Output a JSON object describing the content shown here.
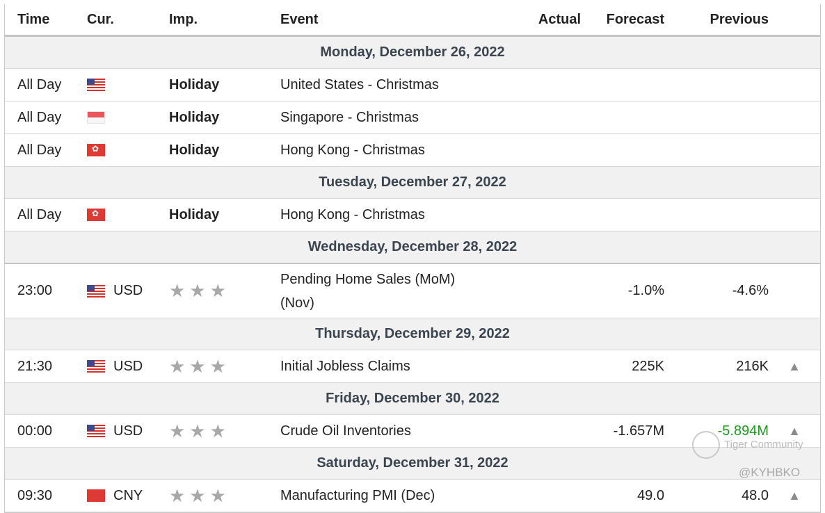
{
  "headers": {
    "time": "Time",
    "cur": "Cur.",
    "imp": "Imp.",
    "event": "Event",
    "actual": "Actual",
    "forecast": "Forecast",
    "previous": "Previous"
  },
  "days": [
    {
      "date": "Monday, December 26, 2022",
      "events": [
        {
          "time": "All Day",
          "flag": "us-flag-icon",
          "currency": "",
          "importance": "Holiday",
          "event": "United States - Christmas",
          "actual": "",
          "forecast": "",
          "previous": ""
        },
        {
          "time": "All Day",
          "flag": "sg-flag-icon",
          "currency": "",
          "importance": "Holiday",
          "event": "Singapore - Christmas",
          "actual": "",
          "forecast": "",
          "previous": ""
        },
        {
          "time": "All Day",
          "flag": "hk-flag-icon",
          "currency": "",
          "importance": "Holiday",
          "event": "Hong Kong - Christmas",
          "actual": "",
          "forecast": "",
          "previous": ""
        }
      ]
    },
    {
      "date": "Tuesday, December 27, 2022",
      "events": [
        {
          "time": "All Day",
          "flag": "hk-flag-icon",
          "currency": "",
          "importance": "Holiday",
          "event": "Hong Kong - Christmas",
          "actual": "",
          "forecast": "",
          "previous": ""
        }
      ]
    },
    {
      "date": "Wednesday, December 28, 2022",
      "events": [
        {
          "time": "23:00",
          "flag": "us-flag-icon",
          "currency": "USD",
          "importance": "★★★",
          "event": "Pending Home Sales (MoM)",
          "event2": "(Nov)",
          "actual": "",
          "forecast": "-1.0%",
          "previous": "-4.6%"
        }
      ]
    },
    {
      "date": "Thursday, December 29, 2022",
      "events": [
        {
          "time": "21:30",
          "flag": "us-flag-icon",
          "currency": "USD",
          "importance": "★★★",
          "event": "Initial Jobless Claims",
          "actual": "",
          "forecast": "225K",
          "previous": "216K",
          "bell": "🔔"
        }
      ]
    },
    {
      "date": "Friday, December 30, 2022",
      "events": [
        {
          "time": "00:00",
          "flag": "us-flag-icon",
          "currency": "USD",
          "importance": "★★★",
          "event": "Crude Oil Inventories",
          "actual": "",
          "forecast": "-1.657M",
          "previous": "-5.894M",
          "previous_color": "#1a9a1a",
          "bell": "🔔"
        }
      ]
    },
    {
      "date": "Saturday, December 31, 2022",
      "events": [
        {
          "time": "09:30",
          "flag": "cn-flag-icon",
          "currency": "CNY",
          "importance": "★★★",
          "event": "Manufacturing PMI (Dec)",
          "actual": "",
          "forecast": "49.0",
          "previous": "48.0",
          "bell": "🔔"
        }
      ]
    }
  ],
  "watermark": {
    "brand": "Tiger Community",
    "handle": "@KYHBKO"
  }
}
